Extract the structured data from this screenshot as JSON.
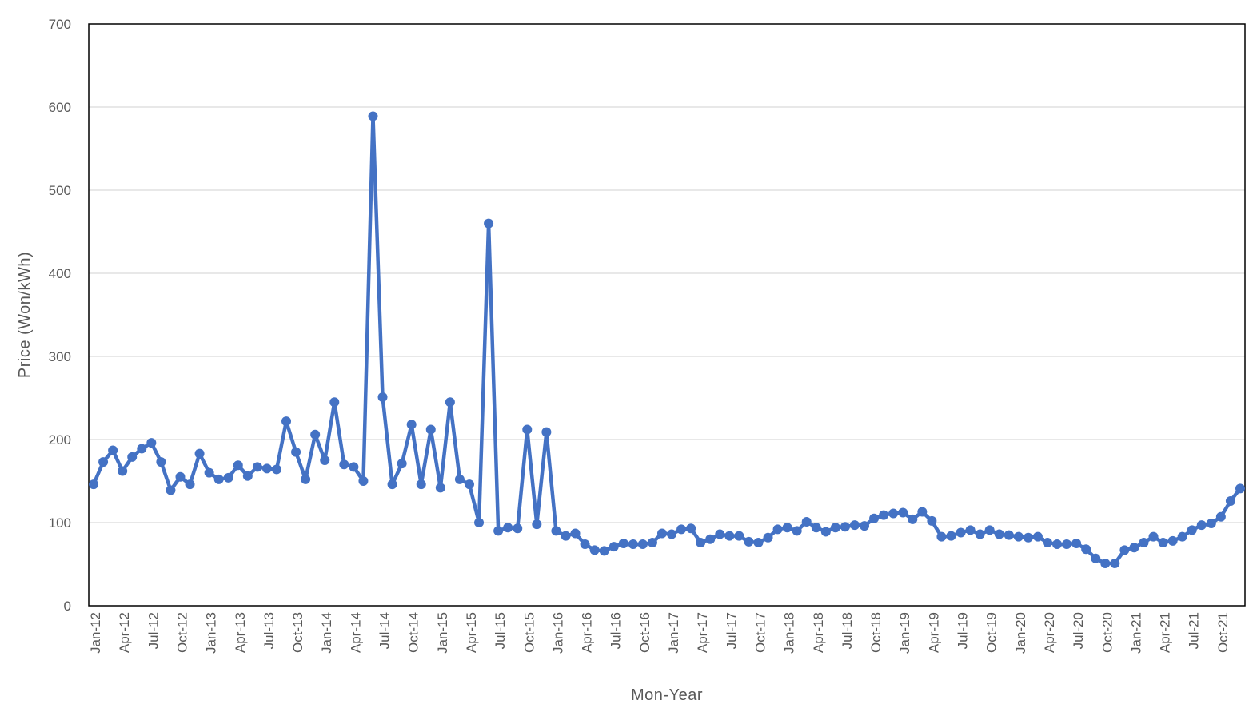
{
  "chart_data": {
    "type": "line",
    "title": "",
    "xlabel": "Mon-Year",
    "ylabel": "Price (Won/kWh)",
    "ylim": [
      0,
      700
    ],
    "yticks": [
      0,
      100,
      200,
      300,
      400,
      500,
      600,
      700
    ],
    "x_tick_labels": [
      "Jan-12",
      "Apr-12",
      "Jul-12",
      "Oct-12",
      "Jan-13",
      "Apr-13",
      "Jul-13",
      "Oct-13",
      "Jan-14",
      "Apr-14",
      "Jul-14",
      "Oct-14",
      "Jan-15",
      "Apr-15",
      "Jul-15",
      "Oct-15",
      "Jan-16",
      "Apr-16",
      "Jul-16",
      "Oct-16",
      "Jan-17",
      "Apr-17",
      "Jul-17",
      "Oct-17",
      "Jan-18",
      "Apr-18",
      "Jul-18",
      "Oct-18",
      "Jan-19",
      "Apr-19",
      "Jul-19",
      "Oct-19",
      "Jan-20",
      "Apr-20",
      "Jul-20",
      "Oct-20",
      "Jan-21",
      "Apr-21",
      "Jul-21",
      "Oct-21"
    ],
    "grid": "horizontal",
    "legend": "none",
    "series_color": "#4472C4",
    "series": [
      {
        "values": [
          146,
          173,
          187,
          162,
          179,
          189,
          196,
          173,
          139,
          155,
          146,
          183,
          160,
          152,
          154,
          169,
          156,
          167,
          165,
          164,
          222,
          185,
          152,
          206,
          175,
          245,
          170,
          167,
          150,
          589,
          251,
          146,
          171,
          218,
          146,
          212,
          142,
          245,
          152,
          146,
          100,
          460,
          90,
          94,
          93,
          212,
          98,
          209,
          90,
          84,
          87,
          74,
          67,
          66,
          71,
          75,
          74,
          74,
          76,
          87,
          86,
          92,
          93,
          76,
          80,
          86,
          84,
          84,
          77,
          76,
          82,
          92,
          94,
          90,
          101,
          94,
          89,
          94,
          95,
          97,
          96,
          105,
          109,
          111,
          112,
          104,
          113,
          102,
          83,
          84,
          88,
          91,
          86,
          91,
          86,
          85,
          83,
          82,
          83,
          76,
          74,
          74,
          75,
          68,
          57,
          51,
          51,
          67,
          70,
          76,
          83,
          76,
          78,
          83,
          91,
          97,
          99,
          107,
          126,
          141
        ]
      }
    ]
  }
}
